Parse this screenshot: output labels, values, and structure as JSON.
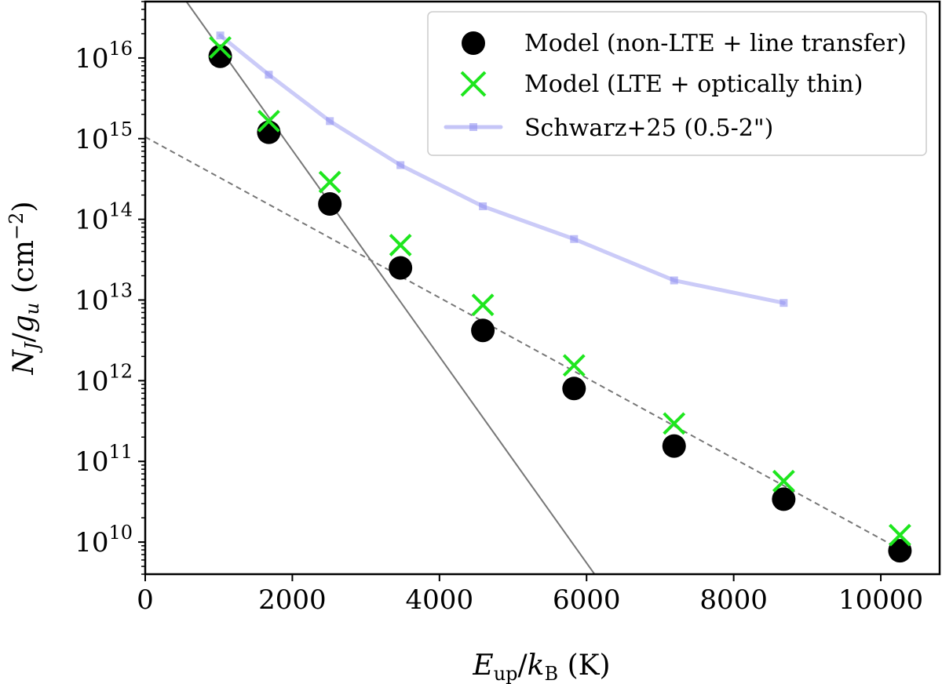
{
  "chart_data": {
    "type": "scatter",
    "title": "",
    "xlabel": "E_up/k_B (K)",
    "ylabel": "N_J/g_u (cm^-2)",
    "x_axis": {
      "scale": "linear",
      "range": [
        0,
        10800
      ],
      "ticks": [
        0,
        2000,
        4000,
        6000,
        8000,
        10000
      ],
      "tick_labels": [
        "0",
        "2000",
        "4000",
        "6000",
        "8000",
        "10000"
      ]
    },
    "y_axis": {
      "scale": "log",
      "range": [
        4000000000.0,
        5e+16
      ],
      "ticks": [
        10000000000.0,
        100000000000.0,
        1000000000000.0,
        10000000000000.0,
        100000000000000.0,
        1000000000000000.0,
        1e+16
      ],
      "tick_labels": [
        {
          "base": "10",
          "exp": "10"
        },
        {
          "base": "10",
          "exp": "11"
        },
        {
          "base": "10",
          "exp": "12"
        },
        {
          "base": "10",
          "exp": "13"
        },
        {
          "base": "10",
          "exp": "14"
        },
        {
          "base": "10",
          "exp": "15"
        },
        {
          "base": "10",
          "exp": "16"
        }
      ]
    },
    "legend": {
      "position": "top-right",
      "entries": [
        "Model (non-LTE + line transfer)",
        "Model (LTE + optically thin)",
        "Schwarz+25 (0.5-2\")"
      ]
    },
    "series": [
      {
        "name": "Model (non-LTE + line transfer)",
        "marker": "circle",
        "color": "#000000",
        "x": [
          1020,
          1680,
          2510,
          3470,
          4590,
          5830,
          7190,
          8680,
          10260
        ],
        "y": [
          1.05e+16,
          1200000000000000.0,
          155000000000000.0,
          25000000000000.0,
          4200000000000.0,
          800000000000.0,
          155000000000.0,
          34000000000.0,
          7800000000.0
        ]
      },
      {
        "name": "Model (LTE + optically thin)",
        "marker": "x",
        "color": "#1ee61e",
        "x": [
          1020,
          1680,
          2510,
          3470,
          4590,
          5830,
          7190,
          8680,
          10260
        ],
        "y": [
          1.35e+16,
          1650000000000000.0,
          290000000000000.0,
          48000000000000.0,
          8700000000000.0,
          1550000000000.0,
          295000000000.0,
          57000000000.0,
          12200000000.0
        ]
      },
      {
        "name": "Schwarz+25 (0.5-2\")",
        "marker": "square-line",
        "color": "#8c8cf0",
        "x": [
          1020,
          1680,
          2510,
          3470,
          4590,
          5830,
          7190,
          8680
        ],
        "y": [
          1.9e+16,
          6200000000000000.0,
          1650000000000000.0,
          470000000000000.0,
          145000000000000.0,
          57000000000000.0,
          17500000000000.0,
          9200000000000.0
        ]
      }
    ],
    "fit_lines": [
      {
        "name": "steep fit",
        "style": "solid",
        "color": "#777777",
        "x": [
          0,
          7000
        ],
        "y": [
          2.6e+17,
          290000000.0
        ]
      },
      {
        "name": "shallow fit",
        "style": "dashed",
        "color": "#777777",
        "x": [
          0,
          10300
        ],
        "y": [
          1050000000000000.0,
          7800000000.0
        ]
      }
    ]
  }
}
